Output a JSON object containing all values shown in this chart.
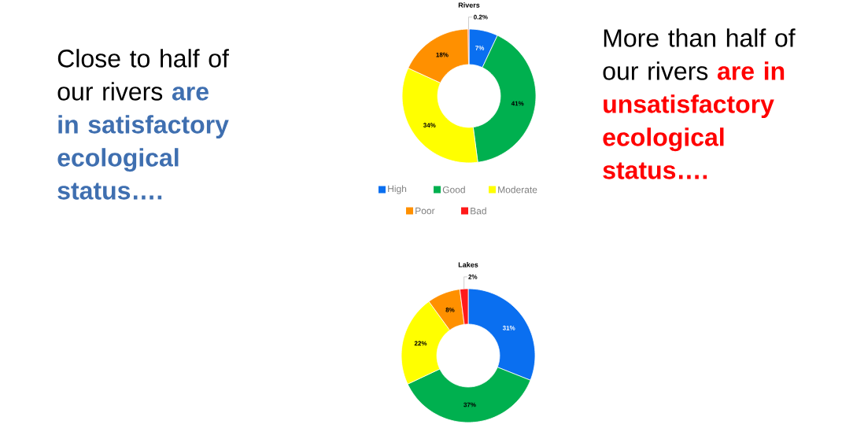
{
  "chart_data": [
    {
      "type": "donut",
      "title": "Rivers",
      "categories": [
        "High",
        "Good",
        "Moderate",
        "Poor",
        "Bad"
      ],
      "values": [
        7,
        41,
        34,
        18,
        0.2
      ],
      "value_labels": [
        "7%",
        "41%",
        "34%",
        "18%",
        "0.2%"
      ],
      "colors": [
        "#0a6ff0",
        "#00b04f",
        "#ffff00",
        "#ff9000",
        "#ff1a1a"
      ],
      "legend": "bottom",
      "annotations": [
        "Close to half of our rivers",
        "are in satisfactory ecological status….",
        "More than half of our rivers",
        "are in unsatisfactory ecological status…."
      ]
    },
    {
      "type": "donut",
      "title": "Lakes",
      "values": [
        31,
        37,
        22,
        8,
        2
      ],
      "value_labels": [
        "31%",
        "37%",
        "22%",
        "8%",
        "2%"
      ],
      "colors": [
        "#0a6ff0",
        "#00b04f",
        "#ffff00",
        "#ff9000",
        "#ff1a1a"
      ]
    }
  ]
}
